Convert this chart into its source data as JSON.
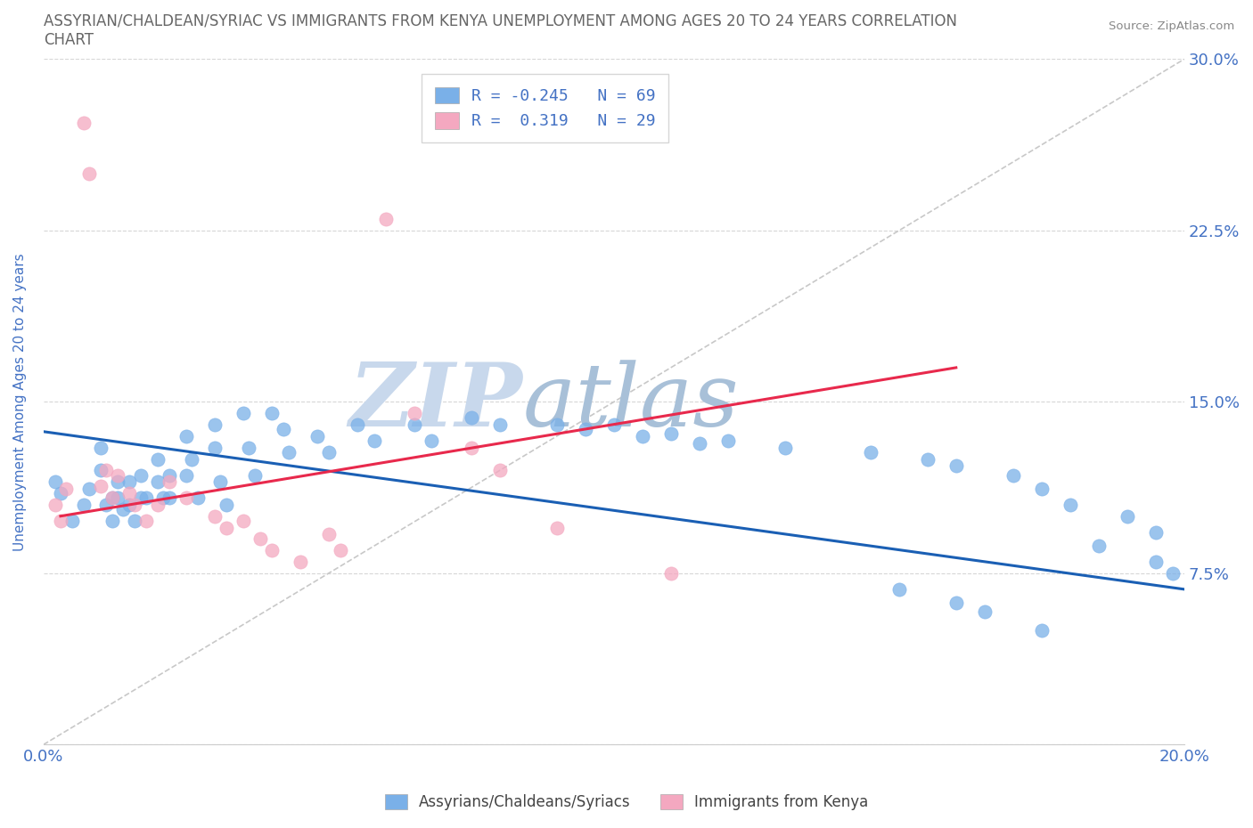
{
  "title": "ASSYRIAN/CHALDEAN/SYRIAC VS IMMIGRANTS FROM KENYA UNEMPLOYMENT AMONG AGES 20 TO 24 YEARS CORRELATION\nCHART",
  "source_text": "Source: ZipAtlas.com",
  "ylabel": "Unemployment Among Ages 20 to 24 years",
  "xlim": [
    0.0,
    0.2
  ],
  "ylim": [
    0.0,
    0.3
  ],
  "yticks": [
    0.0,
    0.075,
    0.15,
    0.225,
    0.3
  ],
  "ytick_labels": [
    "",
    "7.5%",
    "15.0%",
    "22.5%",
    "30.0%"
  ],
  "xticks": [
    0.0,
    0.05,
    0.1,
    0.15,
    0.2
  ],
  "xtick_labels": [
    "0.0%",
    "",
    "",
    "",
    "20.0%"
  ],
  "legend_entries": [
    {
      "label": "R = -0.245   N = 69",
      "color": "#a8c8f0"
    },
    {
      "label": "R =  0.319   N = 29",
      "color": "#f4a0b8"
    }
  ],
  "blue_scatter_x": [
    0.002,
    0.003,
    0.005,
    0.007,
    0.008,
    0.01,
    0.01,
    0.011,
    0.012,
    0.012,
    0.013,
    0.013,
    0.014,
    0.015,
    0.015,
    0.016,
    0.017,
    0.017,
    0.018,
    0.02,
    0.02,
    0.021,
    0.022,
    0.022,
    0.025,
    0.025,
    0.026,
    0.027,
    0.03,
    0.03,
    0.031,
    0.032,
    0.035,
    0.036,
    0.037,
    0.04,
    0.042,
    0.043,
    0.048,
    0.05,
    0.055,
    0.058,
    0.065,
    0.068,
    0.075,
    0.08,
    0.09,
    0.095,
    0.1,
    0.105,
    0.11,
    0.115,
    0.12,
    0.13,
    0.145,
    0.155,
    0.16,
    0.17,
    0.175,
    0.18,
    0.19,
    0.195,
    0.185,
    0.195,
    0.198,
    0.15,
    0.16,
    0.165,
    0.175
  ],
  "blue_scatter_y": [
    0.115,
    0.11,
    0.098,
    0.105,
    0.112,
    0.13,
    0.12,
    0.105,
    0.098,
    0.108,
    0.115,
    0.108,
    0.103,
    0.115,
    0.105,
    0.098,
    0.108,
    0.118,
    0.108,
    0.125,
    0.115,
    0.108,
    0.118,
    0.108,
    0.135,
    0.118,
    0.125,
    0.108,
    0.14,
    0.13,
    0.115,
    0.105,
    0.145,
    0.13,
    0.118,
    0.145,
    0.138,
    0.128,
    0.135,
    0.128,
    0.14,
    0.133,
    0.14,
    0.133,
    0.143,
    0.14,
    0.14,
    0.138,
    0.14,
    0.135,
    0.136,
    0.132,
    0.133,
    0.13,
    0.128,
    0.125,
    0.122,
    0.118,
    0.112,
    0.105,
    0.1,
    0.093,
    0.087,
    0.08,
    0.075,
    0.068,
    0.062,
    0.058,
    0.05
  ],
  "pink_scatter_x": [
    0.002,
    0.003,
    0.004,
    0.007,
    0.008,
    0.01,
    0.011,
    0.012,
    0.013,
    0.015,
    0.016,
    0.018,
    0.02,
    0.022,
    0.025,
    0.03,
    0.032,
    0.035,
    0.038,
    0.04,
    0.045,
    0.05,
    0.052,
    0.06,
    0.065,
    0.075,
    0.08,
    0.09,
    0.11
  ],
  "pink_scatter_y": [
    0.105,
    0.098,
    0.112,
    0.272,
    0.25,
    0.113,
    0.12,
    0.108,
    0.118,
    0.11,
    0.105,
    0.098,
    0.105,
    0.115,
    0.108,
    0.1,
    0.095,
    0.098,
    0.09,
    0.085,
    0.08,
    0.092,
    0.085,
    0.23,
    0.145,
    0.13,
    0.12,
    0.095,
    0.075
  ],
  "blue_line_x": [
    0.0,
    0.2
  ],
  "blue_line_y": [
    0.137,
    0.068
  ],
  "pink_line_x": [
    0.003,
    0.16
  ],
  "pink_line_y": [
    0.1,
    0.165
  ],
  "diagonal_line_x": [
    0.0,
    0.2
  ],
  "diagonal_line_y": [
    0.0,
    0.3
  ],
  "scatter_blue_color": "#7ab0e8",
  "scatter_pink_color": "#f4a8c0",
  "line_blue_color": "#1a5fb4",
  "line_pink_color": "#e8294c",
  "diagonal_color": "#c8c8c8",
  "watermark_zip_color": "#c8d8ec",
  "watermark_atlas_color": "#a8c0d8",
  "background_color": "#ffffff",
  "title_color": "#666666",
  "axis_label_color": "#4472c4",
  "tick_color": "#4472c4",
  "legend_text_color": "#4472c4",
  "grid_color": "#cccccc"
}
